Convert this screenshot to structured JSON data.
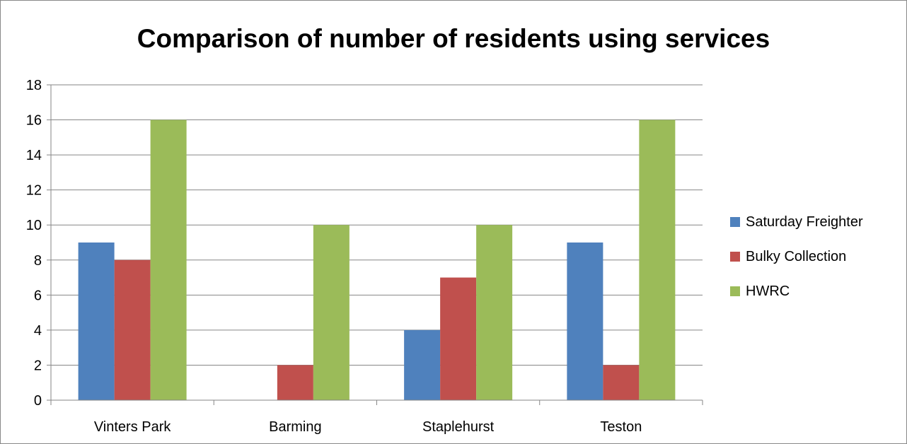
{
  "chart_data": {
    "type": "bar",
    "title": "Comparison of number of residents using services",
    "categories": [
      "Vinters Park",
      "Barming",
      "Staplehurst",
      "Teston"
    ],
    "series": [
      {
        "name": "Saturday Freighter",
        "color": "#4F81BD",
        "values": [
          9,
          0,
          4,
          9
        ]
      },
      {
        "name": "Bulky Collection",
        "color": "#C0504D",
        "values": [
          8,
          2,
          7,
          2
        ]
      },
      {
        "name": "HWRC",
        "color": "#9BBB59",
        "values": [
          16,
          10,
          10,
          16
        ]
      }
    ],
    "ylim": [
      0,
      18
    ],
    "yticks": [
      0,
      2,
      4,
      6,
      8,
      10,
      12,
      14,
      16,
      18
    ],
    "grid": true,
    "legend_position": "right"
  }
}
